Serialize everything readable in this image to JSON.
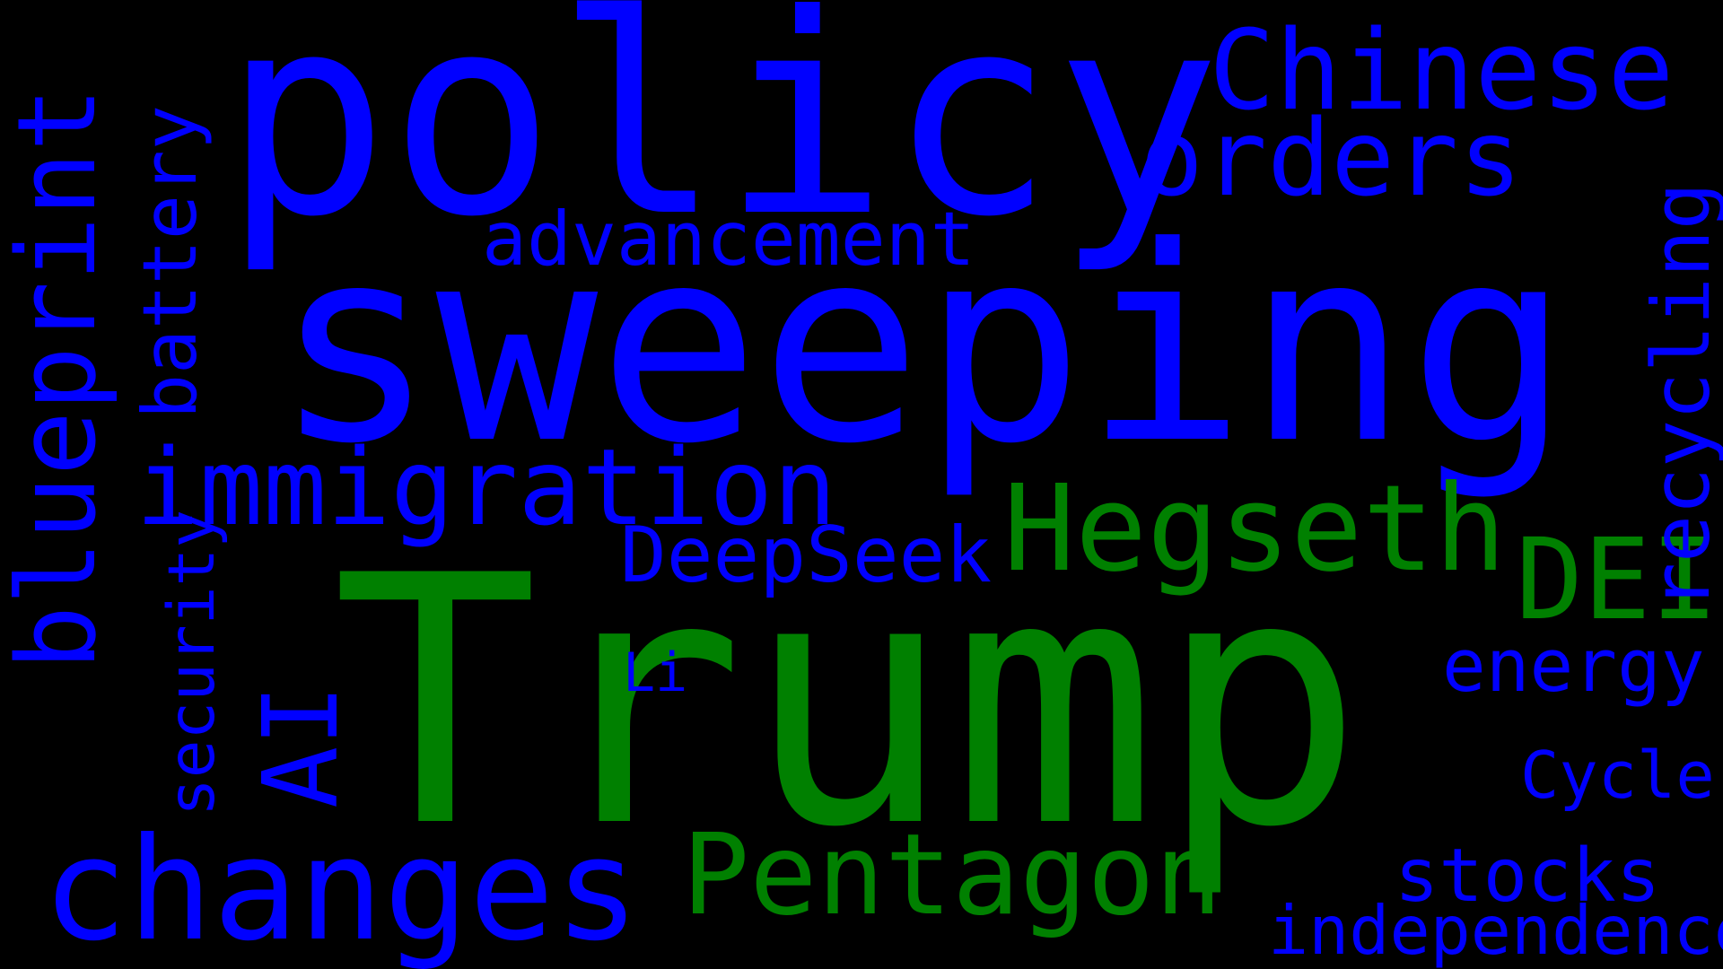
{
  "background_color": "#000000",
  "colors": {
    "primary": "#0000ff",
    "secondary": "#008000"
  },
  "words": {
    "policy": "policy",
    "chinese": "Chinese",
    "orders": "orders",
    "sweeping": "sweeping",
    "advancement": "advancement",
    "blueprint": "blueprint",
    "battery": "battery",
    "immigration": "immigration",
    "hegseth": "Hegseth",
    "deepseek": "DeepSeek",
    "dei": "DEI",
    "recycling": "recycling",
    "security": "security",
    "ai": "AI",
    "trump": "Trump",
    "li": "Li",
    "energy": "energy",
    "cycle": "Cycle",
    "changes": "changes",
    "pentagon": "Pentagon",
    "stocks": "stocks",
    "independence": "independence"
  }
}
